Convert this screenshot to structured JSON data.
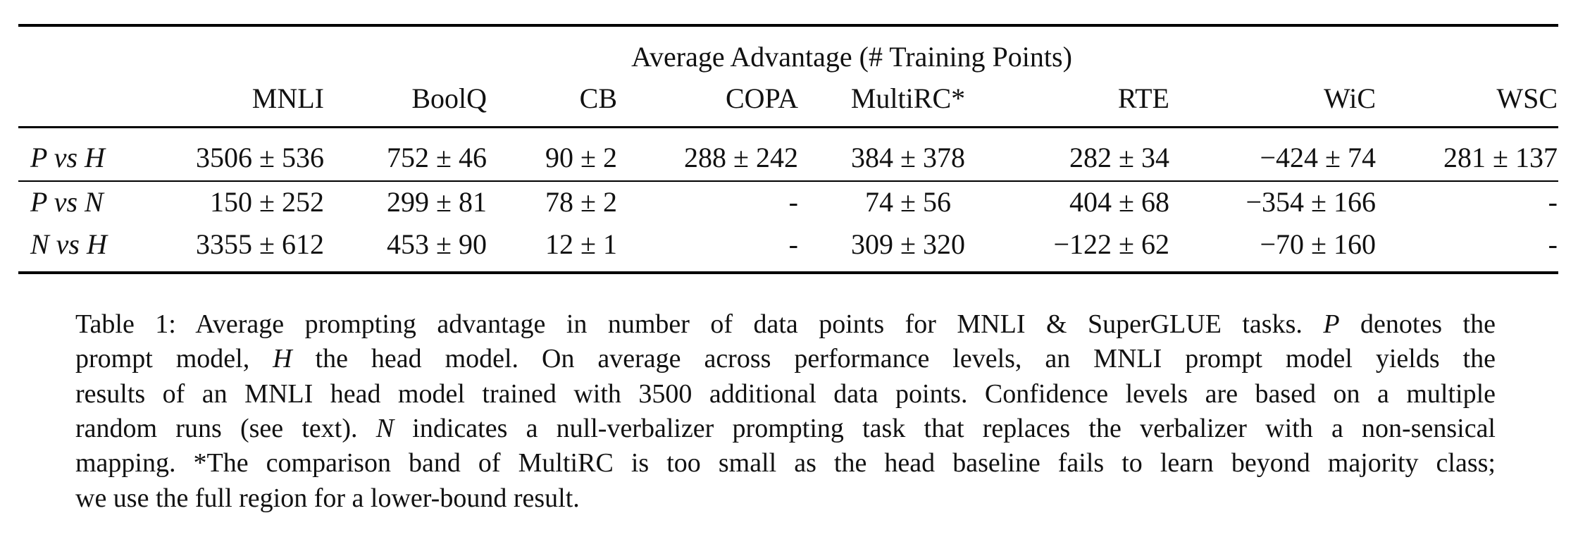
{
  "table": {
    "group_header": "Average Advantage (# Training Points)",
    "columns": [
      "MNLI",
      "BoolQ",
      "CB",
      "COPA",
      "MultiRC*",
      "RTE",
      "WiC",
      "WSC"
    ],
    "rows": [
      {
        "label": "P vs H",
        "values": [
          "3506 ± 536",
          "752 ± 46",
          "90 ± 2",
          "288 ± 242",
          "384 ± 378",
          "282 ± 34",
          "−424 ± 74",
          "281 ± 137"
        ]
      },
      {
        "label": "P vs N",
        "values": [
          "150 ± 252",
          "299 ± 81",
          "78 ± 2",
          "-",
          "74 ± 56",
          "404 ± 68",
          "−354 ± 166",
          "-"
        ]
      },
      {
        "label": "N vs H",
        "values": [
          "3355 ± 612",
          "453 ± 90",
          "12 ± 1",
          "-",
          "309 ± 320",
          "−122 ± 62",
          "−70 ± 160",
          "-"
        ]
      }
    ]
  },
  "caption": {
    "lines": [
      [
        {
          "t": "Table 1: Average prompting advantage in number of data points for MNLI & SuperGLUE tasks. "
        },
        {
          "t": "P",
          "i": true
        },
        {
          "t": " denotes the"
        }
      ],
      [
        {
          "t": "prompt model, "
        },
        {
          "t": "H",
          "i": true
        },
        {
          "t": " the head model. On average across performance levels, an MNLI prompt model yields the"
        }
      ],
      [
        {
          "t": "results of an MNLI head model trained with 3500 additional data points. Confidence levels are based on a multiple"
        }
      ],
      [
        {
          "t": "random runs (see text). "
        },
        {
          "t": "N",
          "i": true
        },
        {
          "t": " indicates a null-verbalizer prompting task that replaces the verbalizer with a non-sensical"
        }
      ],
      [
        {
          "t": "mapping. *The comparison band of MultiRC is too small as the head baseline fails to learn beyond majority class;"
        }
      ],
      [
        {
          "t": "we use the full region for a lower-bound result."
        }
      ]
    ]
  }
}
